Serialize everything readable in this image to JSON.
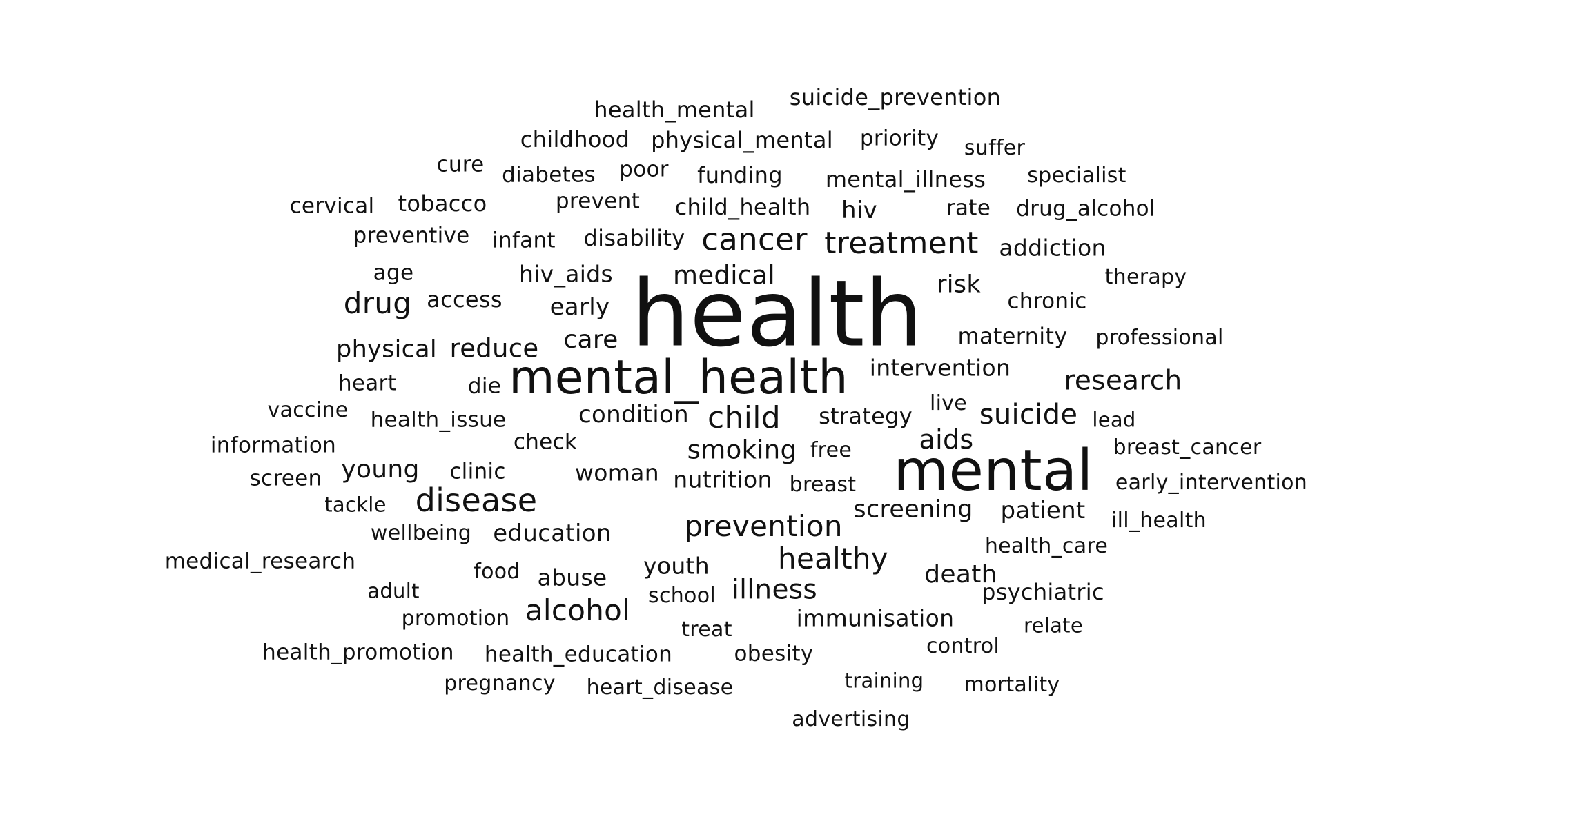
{
  "word_cloud": {
    "text_color": "#111111",
    "background": "#ffffff",
    "words": [
      {
        "text": "health",
        "weight": 1.0
      },
      {
        "text": "mental",
        "weight": 0.6
      },
      {
        "text": "mental_health",
        "weight": 0.5
      },
      {
        "text": "disease",
        "weight": 0.32
      },
      {
        "text": "cancer",
        "weight": 0.3
      },
      {
        "text": "treatment",
        "weight": 0.3
      },
      {
        "text": "prevention",
        "weight": 0.29
      },
      {
        "text": "child",
        "weight": 0.3
      },
      {
        "text": "healthy",
        "weight": 0.29
      },
      {
        "text": "alcohol",
        "weight": 0.29
      },
      {
        "text": "suicide",
        "weight": 0.28
      },
      {
        "text": "research",
        "weight": 0.28
      },
      {
        "text": "drug",
        "weight": 0.29
      },
      {
        "text": "medical",
        "weight": 0.26
      },
      {
        "text": "illness",
        "weight": 0.27
      },
      {
        "text": "smoking",
        "weight": 0.26
      },
      {
        "text": "aids",
        "weight": 0.26
      },
      {
        "text": "physical",
        "weight": 0.25
      },
      {
        "text": "reduce",
        "weight": 0.26
      },
      {
        "text": "care",
        "weight": 0.25
      },
      {
        "text": "young",
        "weight": 0.24
      },
      {
        "text": "death",
        "weight": 0.25
      },
      {
        "text": "education",
        "weight": 0.24
      },
      {
        "text": "screening",
        "weight": 0.24
      },
      {
        "text": "condition",
        "weight": 0.23
      },
      {
        "text": "early",
        "weight": 0.23
      },
      {
        "text": "risk",
        "weight": 0.24
      },
      {
        "text": "patient",
        "weight": 0.23
      },
      {
        "text": "strategy",
        "weight": 0.22
      },
      {
        "text": "intervention",
        "weight": 0.22
      },
      {
        "text": "nutrition",
        "weight": 0.22
      },
      {
        "text": "woman",
        "weight": 0.22
      },
      {
        "text": "addiction",
        "weight": 0.23
      },
      {
        "text": "hiv",
        "weight": 0.23
      },
      {
        "text": "abuse",
        "weight": 0.22
      },
      {
        "text": "youth",
        "weight": 0.22
      },
      {
        "text": "immunisation",
        "weight": 0.22
      },
      {
        "text": "psychiatric",
        "weight": 0.21
      },
      {
        "text": "maternity",
        "weight": 0.21
      },
      {
        "text": "mental_illness",
        "weight": 0.21
      },
      {
        "text": "hiv_aids",
        "weight": 0.21
      },
      {
        "text": "access",
        "weight": 0.21
      },
      {
        "text": "disability",
        "weight": 0.21
      },
      {
        "text": "funding",
        "weight": 0.21
      },
      {
        "text": "child_health",
        "weight": 0.21
      },
      {
        "text": "physical_mental",
        "weight": 0.21
      },
      {
        "text": "health_mental",
        "weight": 0.21
      },
      {
        "text": "childhood",
        "weight": 0.21
      },
      {
        "text": "suicide_prevention",
        "weight": 0.21
      },
      {
        "text": "priority",
        "weight": 0.21
      },
      {
        "text": "tobacco",
        "weight": 0.21
      },
      {
        "text": "diabetes",
        "weight": 0.21
      },
      {
        "text": "poor",
        "weight": 0.21
      },
      {
        "text": "prevent",
        "weight": 0.2
      },
      {
        "text": "rate",
        "weight": 0.21
      },
      {
        "text": "drug_alcohol",
        "weight": 0.21
      },
      {
        "text": "specialist",
        "weight": 0.2
      },
      {
        "text": "suffer",
        "weight": 0.2
      },
      {
        "text": "cure",
        "weight": 0.2
      },
      {
        "text": "cervical",
        "weight": 0.2
      },
      {
        "text": "preventive",
        "weight": 0.2
      },
      {
        "text": "infant",
        "weight": 0.2
      },
      {
        "text": "age",
        "weight": 0.2
      },
      {
        "text": "therapy",
        "weight": 0.2
      },
      {
        "text": "chronic",
        "weight": 0.2
      },
      {
        "text": "professional",
        "weight": 0.2
      },
      {
        "text": "heart",
        "weight": 0.2
      },
      {
        "text": "die",
        "weight": 0.2
      },
      {
        "text": "vaccine",
        "weight": 0.2
      },
      {
        "text": "health_issue",
        "weight": 0.2
      },
      {
        "text": "live",
        "weight": 0.19
      },
      {
        "text": "lead",
        "weight": 0.19
      },
      {
        "text": "information",
        "weight": 0.2
      },
      {
        "text": "check",
        "weight": 0.2
      },
      {
        "text": "free",
        "weight": 0.2
      },
      {
        "text": "breast_cancer",
        "weight": 0.2
      },
      {
        "text": "screen",
        "weight": 0.2
      },
      {
        "text": "clinic",
        "weight": 0.2
      },
      {
        "text": "breast",
        "weight": 0.2
      },
      {
        "text": "early_intervention",
        "weight": 0.2
      },
      {
        "text": "tackle",
        "weight": 0.19
      },
      {
        "text": "wellbeing",
        "weight": 0.2
      },
      {
        "text": "ill_health",
        "weight": 0.2
      },
      {
        "text": "medical_research",
        "weight": 0.2
      },
      {
        "text": "health_care",
        "weight": 0.2
      },
      {
        "text": "adult",
        "weight": 0.19
      },
      {
        "text": "food",
        "weight": 0.2
      },
      {
        "text": "school",
        "weight": 0.2
      },
      {
        "text": "promotion",
        "weight": 0.2
      },
      {
        "text": "treat",
        "weight": 0.2
      },
      {
        "text": "relate",
        "weight": 0.19
      },
      {
        "text": "health_promotion",
        "weight": 0.2
      },
      {
        "text": "health_education",
        "weight": 0.2
      },
      {
        "text": "obesity",
        "weight": 0.2
      },
      {
        "text": "control",
        "weight": 0.19
      },
      {
        "text": "pregnancy",
        "weight": 0.2
      },
      {
        "text": "heart_disease",
        "weight": 0.2
      },
      {
        "text": "training",
        "weight": 0.19
      },
      {
        "text": "mortality",
        "weight": 0.19
      },
      {
        "text": "advertising",
        "weight": 0.2
      }
    ]
  }
}
